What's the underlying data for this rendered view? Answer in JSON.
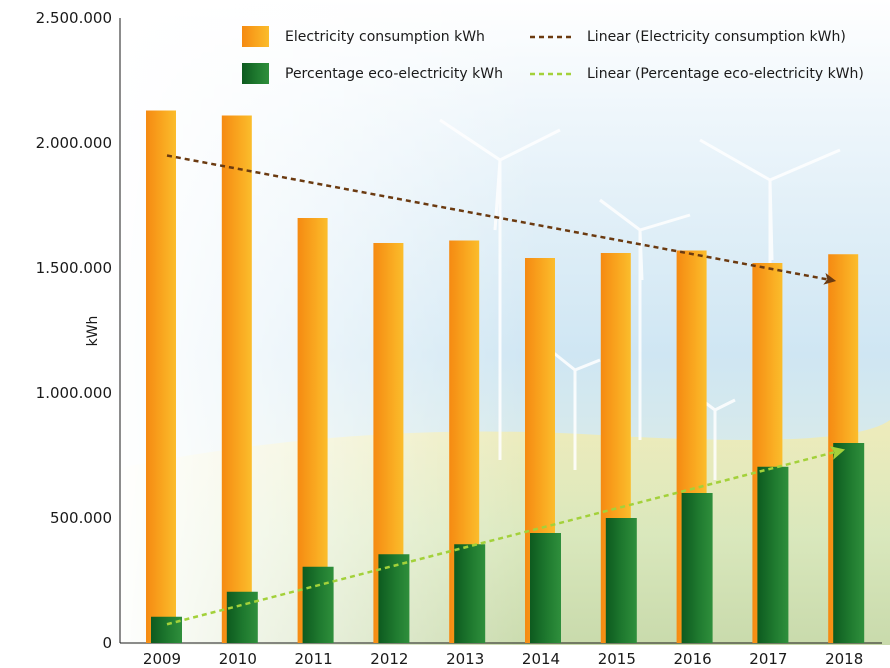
{
  "chart_data": {
    "type": "bar",
    "title": "",
    "xlabel": "",
    "ylabel": "kWh",
    "ylim": [
      0,
      2500000
    ],
    "yticks": [
      0,
      500000,
      1000000,
      1500000,
      2000000,
      2500000
    ],
    "ytick_labels": [
      "0",
      "500.000",
      "1.000.000",
      "1.500.000",
      "2.000.000",
      "2.500.000"
    ],
    "categories": [
      "2009",
      "2010",
      "2011",
      "2012",
      "2013",
      "2014",
      "2015",
      "2016",
      "2017",
      "2018"
    ],
    "grid": false,
    "legend_position": "top-right",
    "series": [
      {
        "name": "Electricity consumption kWh",
        "color": "#f7a11a",
        "values": [
          2130000,
          2110000,
          1700000,
          1600000,
          1610000,
          1540000,
          1560000,
          1570000,
          1520000,
          1555000
        ]
      },
      {
        "name": "Percentage eco-electricity kWh",
        "color": "#1e7a2e",
        "values": [
          105000,
          205000,
          305000,
          355000,
          395000,
          440000,
          500000,
          600000,
          705000,
          800000
        ]
      }
    ],
    "trendlines": [
      {
        "name": "Linear (Electricity consumption kWh)",
        "series": "Electricity consumption kWh",
        "color": "#6b3a10",
        "start": 1950000,
        "end": 1450000
      },
      {
        "name": "Linear (Percentage eco-electricity kWh)",
        "series": "Percentage eco-electricity kWh",
        "color": "#a3d13a",
        "start": 75000,
        "end": 770000
      }
    ]
  }
}
